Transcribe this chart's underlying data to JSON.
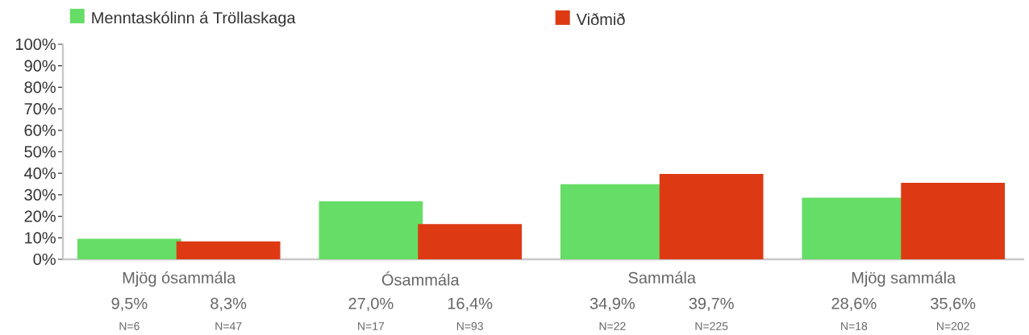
{
  "chart_data": {
    "type": "bar",
    "categories": [
      "Mjög ósammála",
      "Ósammála",
      "Sammála",
      "Mjög sammála"
    ],
    "series": [
      {
        "name": "Menntaskólinn á Tröllaskaga",
        "color": "#66dd66",
        "values": [
          9.5,
          27.0,
          34.9,
          28.6
        ],
        "value_labels": [
          "9,5%",
          "27,0%",
          "34,9%",
          "28,6%"
        ]
      },
      {
        "name": "Viðmið",
        "color": "#dd3a14",
        "values": [
          8.3,
          16.4,
          39.7,
          35.6
        ],
        "value_labels": [
          "8,3%",
          "16,4%",
          "39,7%",
          "35,6%"
        ]
      }
    ],
    "ylim": [
      0,
      100
    ],
    "yticks": [
      {
        "value": 0,
        "label": "0%"
      },
      {
        "value": 10,
        "label": "10%"
      },
      {
        "value": 20,
        "label": "20%"
      },
      {
        "value": 30,
        "label": "30%"
      },
      {
        "value": 40,
        "label": "40%"
      },
      {
        "value": 50,
        "label": "50%"
      },
      {
        "value": 60,
        "label": "60%"
      },
      {
        "value": 70,
        "label": "70%"
      },
      {
        "value": 80,
        "label": "80%"
      },
      {
        "value": 90,
        "label": "90%"
      },
      {
        "value": 100,
        "label": "100%"
      }
    ],
    "legend": "top",
    "annotations": [
      "N=6",
      "N=47",
      "N=17",
      "N=93",
      "N=22",
      "N=225",
      "N=18",
      "N=202"
    ]
  }
}
